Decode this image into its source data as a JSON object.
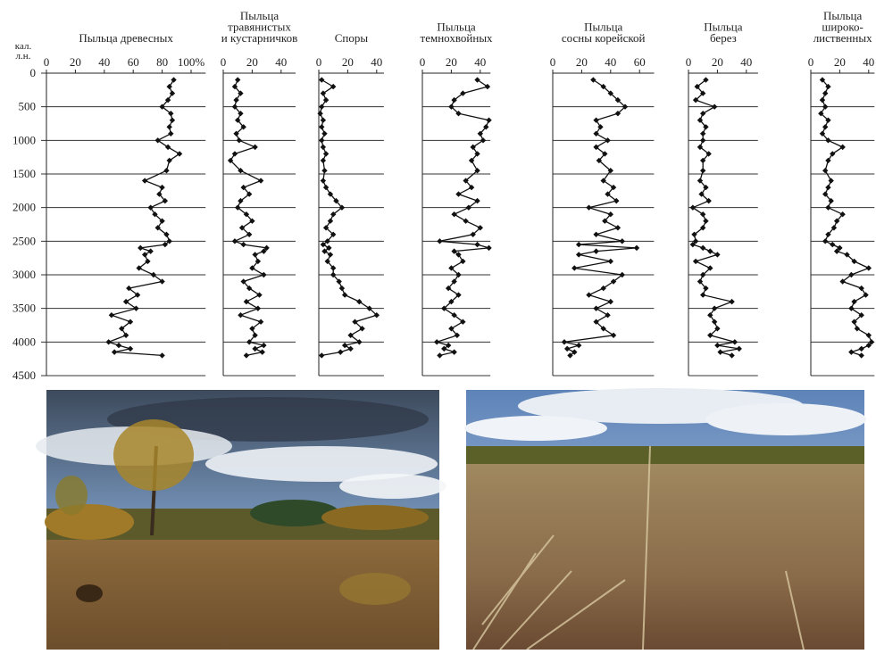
{
  "chart_data": [
    {
      "type": "line",
      "title": [
        "Пыльца древесных"
      ],
      "ylabel": [
        "кал.",
        "л.н."
      ],
      "ylim": [
        0,
        4500
      ],
      "yticks": [
        0,
        500,
        1000,
        1500,
        2000,
        2500,
        3000,
        3500,
        4000,
        4500
      ],
      "grid": true,
      "color": "#111",
      "xlim": [
        0,
        110
      ],
      "xticks": [
        0,
        20,
        40,
        60,
        80,
        {
          "value": 100,
          "label": "100%"
        }
      ],
      "x": [
        100,
        200,
        300,
        400,
        500,
        600,
        700,
        800,
        900,
        1000,
        1100,
        1200,
        1300,
        1450,
        1600,
        1700,
        1800,
        1900,
        2000,
        2100,
        2200,
        2300,
        2400,
        2500,
        2550,
        2600,
        2650,
        2700,
        2800,
        2900,
        3000,
        3100,
        3200,
        3300,
        3400,
        3500,
        3600,
        3700,
        3800,
        3900,
        4000,
        4050,
        4100,
        4150,
        4200
      ],
      "values": [
        88,
        85,
        87,
        84,
        80,
        86,
        87,
        85,
        86,
        77,
        84,
        92,
        85,
        83,
        68,
        80,
        78,
        82,
        72,
        75,
        80,
        77,
        83,
        85,
        82,
        65,
        72,
        68,
        70,
        64,
        74,
        80,
        57,
        63,
        55,
        62,
        45,
        58,
        52,
        55,
        43,
        50,
        58,
        47,
        80
      ]
    },
    {
      "type": "line",
      "title": [
        "Пыльца",
        "травянистых",
        "и кустарничков"
      ],
      "ylim": [
        0,
        4500
      ],
      "grid": true,
      "color": "#111",
      "xlim": [
        0,
        50
      ],
      "xticks": [
        0,
        20,
        40
      ],
      "x": [
        100,
        200,
        300,
        400,
        500,
        600,
        700,
        800,
        900,
        1000,
        1100,
        1200,
        1300,
        1450,
        1600,
        1700,
        1800,
        1900,
        2000,
        2100,
        2200,
        2300,
        2400,
        2500,
        2550,
        2600,
        2650,
        2700,
        2800,
        2900,
        3000,
        3100,
        3200,
        3300,
        3400,
        3500,
        3600,
        3700,
        3800,
        3900,
        4000,
        4050,
        4100,
        4150,
        4200
      ],
      "values": [
        10,
        8,
        12,
        9,
        8,
        12,
        10,
        14,
        9,
        11,
        22,
        8,
        5,
        12,
        26,
        14,
        18,
        12,
        10,
        16,
        20,
        13,
        18,
        8,
        14,
        30,
        28,
        22,
        24,
        20,
        28,
        14,
        18,
        25,
        16,
        24,
        12,
        26,
        20,
        22,
        18,
        28,
        22,
        27,
        16
      ]
    },
    {
      "type": "line",
      "title": [
        "Споры"
      ],
      "ylim": [
        0,
        4500
      ],
      "grid": true,
      "color": "#111",
      "xlim": [
        0,
        45
      ],
      "xticks": [
        0,
        20,
        40
      ],
      "x": [
        100,
        200,
        300,
        400,
        500,
        600,
        700,
        800,
        900,
        1000,
        1100,
        1200,
        1300,
        1450,
        1600,
        1700,
        1800,
        1900,
        2000,
        2100,
        2200,
        2300,
        2400,
        2500,
        2550,
        2600,
        2650,
        2700,
        2800,
        2900,
        3000,
        3100,
        3200,
        3300,
        3400,
        3500,
        3600,
        3700,
        3800,
        3900,
        4000,
        4050,
        4100,
        4150,
        4200
      ],
      "values": [
        2,
        10,
        3,
        5,
        2,
        1,
        3,
        2,
        4,
        2,
        3,
        5,
        3,
        4,
        3,
        5,
        8,
        12,
        16,
        10,
        8,
        5,
        10,
        6,
        3,
        7,
        4,
        8,
        6,
        10,
        10,
        14,
        16,
        18,
        28,
        35,
        40,
        25,
        30,
        22,
        28,
        18,
        22,
        15,
        2
      ]
    },
    {
      "type": "line",
      "title": [
        "Пыльца",
        "темнохвойных"
      ],
      "ylim": [
        0,
        4500
      ],
      "grid": true,
      "color": "#111",
      "xlim": [
        0,
        47
      ],
      "xticks": [
        0,
        20,
        40
      ],
      "x": [
        100,
        200,
        300,
        400,
        500,
        600,
        700,
        800,
        900,
        1000,
        1100,
        1200,
        1300,
        1450,
        1600,
        1700,
        1800,
        1900,
        2000,
        2100,
        2200,
        2300,
        2400,
        2500,
        2550,
        2600,
        2650,
        2700,
        2800,
        2900,
        3000,
        3100,
        3200,
        3300,
        3400,
        3500,
        3600,
        3700,
        3800,
        3900,
        4000,
        4050,
        4100,
        4150,
        4200
      ],
      "values": [
        38,
        45,
        28,
        22,
        20,
        25,
        46,
        44,
        40,
        42,
        35,
        38,
        34,
        38,
        30,
        34,
        25,
        38,
        32,
        22,
        30,
        40,
        35,
        12,
        38,
        46,
        22,
        25,
        28,
        20,
        25,
        22,
        18,
        25,
        20,
        15,
        22,
        28,
        20,
        24,
        10,
        18,
        15,
        22,
        12
      ]
    },
    {
      "type": "line",
      "title": [
        "Пыльца",
        "сосны корейской"
      ],
      "ylim": [
        0,
        4500
      ],
      "grid": true,
      "color": "#111",
      "xlim": [
        0,
        70
      ],
      "xticks": [
        0,
        20,
        40,
        60
      ],
      "x": [
        100,
        200,
        300,
        400,
        500,
        600,
        700,
        800,
        900,
        1000,
        1100,
        1200,
        1300,
        1450,
        1600,
        1700,
        1800,
        1900,
        2000,
        2100,
        2200,
        2300,
        2400,
        2500,
        2550,
        2600,
        2650,
        2700,
        2800,
        2900,
        3000,
        3100,
        3200,
        3300,
        3400,
        3500,
        3600,
        3700,
        3800,
        3900,
        4000,
        4050,
        4100,
        4150,
        4200
      ],
      "values": [
        28,
        35,
        40,
        45,
        50,
        45,
        30,
        33,
        30,
        38,
        30,
        36,
        32,
        40,
        35,
        42,
        38,
        44,
        25,
        40,
        36,
        45,
        30,
        48,
        18,
        58,
        30,
        18,
        40,
        15,
        48,
        42,
        35,
        25,
        40,
        30,
        38,
        30,
        35,
        42,
        8,
        18,
        10,
        15,
        12
      ]
    },
    {
      "type": "line",
      "title": [
        "Пыльца",
        "берез"
      ],
      "ylim": [
        0,
        4500
      ],
      "grid": true,
      "color": "#111",
      "xlim": [
        0,
        48
      ],
      "xticks": [
        0,
        20,
        40
      ],
      "x": [
        100,
        200,
        300,
        400,
        500,
        600,
        700,
        800,
        900,
        1000,
        1100,
        1200,
        1300,
        1450,
        1600,
        1700,
        1800,
        1900,
        2000,
        2100,
        2200,
        2300,
        2400,
        2500,
        2550,
        2600,
        2650,
        2700,
        2800,
        2900,
        3000,
        3100,
        3200,
        3300,
        3400,
        3500,
        3600,
        3700,
        3800,
        3900,
        4000,
        4050,
        4100,
        4150,
        4200
      ],
      "values": [
        12,
        6,
        10,
        5,
        18,
        10,
        8,
        12,
        10,
        10,
        8,
        14,
        10,
        10,
        8,
        12,
        9,
        14,
        3,
        10,
        12,
        10,
        4,
        5,
        3,
        10,
        15,
        20,
        5,
        15,
        10,
        8,
        12,
        10,
        30,
        18,
        15,
        18,
        20,
        15,
        32,
        20,
        35,
        22,
        30
      ]
    },
    {
      "type": "line",
      "title": [
        "Пыльца",
        "широко-",
        "лиственных"
      ],
      "ylim": [
        0,
        4500
      ],
      "grid": true,
      "color": "#111",
      "xlim": [
        0,
        44
      ],
      "xticks": [
        0,
        20,
        40
      ],
      "x": [
        100,
        200,
        300,
        400,
        500,
        600,
        700,
        800,
        900,
        1000,
        1100,
        1200,
        1300,
        1450,
        1600,
        1700,
        1800,
        1900,
        2000,
        2100,
        2200,
        2300,
        2400,
        2500,
        2550,
        2600,
        2650,
        2700,
        2800,
        2900,
        3000,
        3100,
        3200,
        3300,
        3400,
        3500,
        3600,
        3700,
        3800,
        3900,
        4000,
        4050,
        4100,
        4150,
        4200
      ],
      "values": [
        8,
        12,
        10,
        8,
        10,
        7,
        12,
        10,
        8,
        12,
        22,
        15,
        12,
        10,
        14,
        12,
        10,
        14,
        12,
        22,
        18,
        16,
        12,
        10,
        15,
        20,
        18,
        25,
        30,
        40,
        28,
        22,
        35,
        38,
        30,
        28,
        35,
        30,
        32,
        40,
        42,
        40,
        35,
        28,
        35
      ]
    }
  ]
}
